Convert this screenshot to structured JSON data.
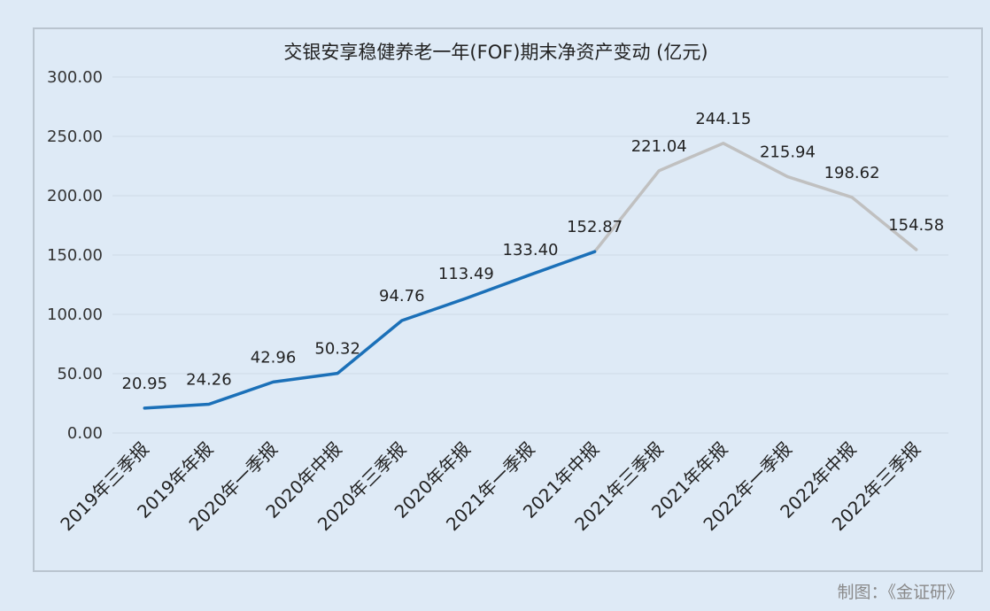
{
  "chart_data": {
    "type": "line",
    "title": "交银安享稳健养老一年(FOF)期末净资产变动 (亿元)",
    "xlabel": "",
    "ylabel": "",
    "ylim": [
      0,
      300
    ],
    "yticks": [
      0,
      50,
      100,
      150,
      200,
      250,
      300
    ],
    "ytick_labels": [
      "0.00",
      "50.00",
      "100.00",
      "150.00",
      "200.00",
      "250.00",
      "300.00"
    ],
    "grid": true,
    "legend": "none",
    "categories": [
      "2019年三季报",
      "2019年年报",
      "2020年一季报",
      "2020年中报",
      "2020年三季报",
      "2020年年报",
      "2021年一季报",
      "2021年中报",
      "2021年三季报",
      "2021年年报",
      "2022年一季报",
      "2022年中报",
      "2022年三季报"
    ],
    "values": [
      20.95,
      24.26,
      42.96,
      50.32,
      94.76,
      113.49,
      133.4,
      152.87,
      221.04,
      244.15,
      215.94,
      198.62,
      154.58
    ],
    "value_labels": [
      "20.95",
      "24.26",
      "42.96",
      "50.32",
      "94.76",
      "113.49",
      "133.40",
      "152.87",
      "221.04",
      "244.15",
      "215.94",
      "198.62",
      "154.58"
    ],
    "colors": {
      "highlight": "#1b70b8",
      "rest": "#c0c0c0"
    },
    "highlight_until_index": 7
  },
  "footer": {
    "credit": "制图：《金证研》"
  }
}
